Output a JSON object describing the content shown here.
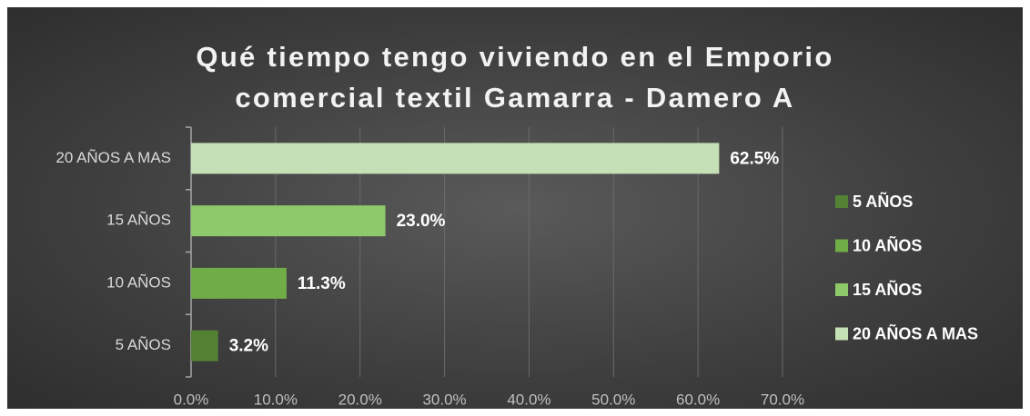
{
  "chart_data": {
    "type": "barh",
    "title": "Qué tiempo tengo viviendo en el Emporio comercial textil Gamarra - Damero A",
    "categories": [
      "5 AÑOS",
      "10 AÑOS",
      "15 AÑOS",
      "20 AÑOS A MAS"
    ],
    "values": [
      3.2,
      11.3,
      23.0,
      62.5
    ],
    "value_labels": [
      "3.2%",
      "11.3%",
      "23.0%",
      "62.5%"
    ],
    "colors": [
      "#548235",
      "#70ad47",
      "#8ec96a",
      "#c5e0b4"
    ],
    "xlim": [
      0,
      70
    ],
    "xticks": [
      {
        "value": 0,
        "label": "0.0%"
      },
      {
        "value": 10,
        "label": "10.0%"
      },
      {
        "value": 20,
        "label": "20.0%"
      },
      {
        "value": 30,
        "label": "30.0%"
      },
      {
        "value": 40,
        "label": "40.0%"
      },
      {
        "value": 50,
        "label": "50.0%"
      },
      {
        "value": 60,
        "label": "60.0%"
      },
      {
        "value": 70,
        "label": "70.0%"
      }
    ],
    "grid": true,
    "legend": "right"
  }
}
